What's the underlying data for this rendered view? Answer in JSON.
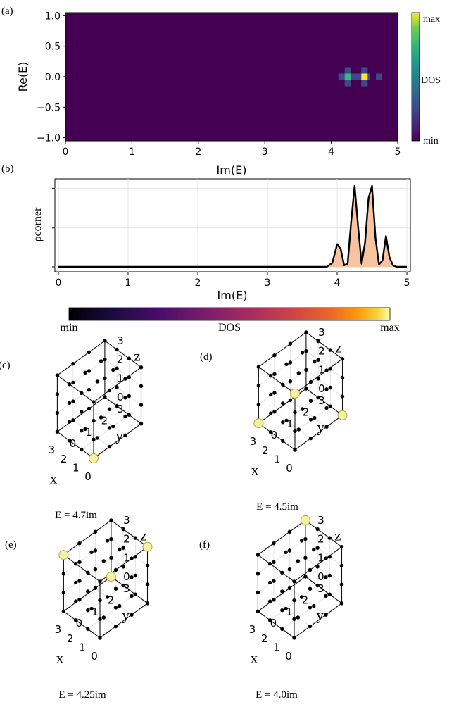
{
  "chart_data": [
    {
      "panel_label": "(a)",
      "type": "heatmap",
      "xlabel": "Im(E)",
      "ylabel": "Re(E)",
      "xlim": [
        0,
        5.0
      ],
      "ylim": [
        -1.05,
        1.05
      ],
      "xticks": [
        "0",
        "1",
        "2",
        "3",
        "4",
        "5"
      ],
      "yticks": [
        "1.0",
        "0.5",
        "0.0",
        "−0.5",
        "−1.0"
      ],
      "colorbar": {
        "label": "DOS",
        "max_label": "max",
        "min_label": "min"
      },
      "hotspots": [
        {
          "x": 3.98,
          "y": 0.0,
          "intensity": 0.22
        },
        {
          "x": 4.25,
          "y": 0.0,
          "intensity": 0.85
        },
        {
          "x": 4.5,
          "y": 0.0,
          "intensity": 1.0
        },
        {
          "x": 4.72,
          "y": 0.0,
          "intensity": 0.3
        }
      ]
    },
    {
      "panel_label": "(b)",
      "type": "area",
      "xlabel": "Im(E)",
      "ylabel": "ρcorner",
      "xlim": [
        -0.05,
        5.05
      ],
      "xticks": [
        "0",
        "1",
        "2",
        "3",
        "4",
        "5"
      ],
      "grid": true,
      "series": [
        {
          "x": [
            0,
            0.5,
            1.0,
            1.5,
            2.0,
            2.5,
            3.0,
            3.5,
            3.85,
            3.93,
            4.0,
            4.05,
            4.1,
            4.15,
            4.2,
            4.25,
            4.3,
            4.35,
            4.4,
            4.45,
            4.5,
            4.55,
            4.6,
            4.65,
            4.7,
            4.75,
            4.8,
            4.85,
            4.9,
            5.0
          ],
          "y": [
            0,
            0,
            0,
            0,
            0,
            0,
            0,
            0,
            0.0,
            0.05,
            0.28,
            0.22,
            0.02,
            0.04,
            0.55,
            1.0,
            0.5,
            0.04,
            0.3,
            0.85,
            1.0,
            0.35,
            0.03,
            0.08,
            0.38,
            0.12,
            0.02,
            0,
            0,
            0
          ]
        }
      ]
    },
    {
      "type": "colorbar",
      "label": "DOS",
      "min_label": "min",
      "max_label": "max"
    },
    {
      "panel_label": "(c)",
      "type": "scatter",
      "caption": "E = 4.7im",
      "xlabel": "x",
      "ylabel": "y",
      "zlabel": "z",
      "ticks": [
        "0",
        "1",
        "2",
        "3"
      ],
      "grid_points_per_axis": 4,
      "highlighted_sites": [
        {
          "x": 0,
          "y": 0,
          "z": 0
        }
      ]
    },
    {
      "panel_label": "(d)",
      "type": "scatter",
      "caption": "E =  4.5im",
      "xlabel": "x",
      "ylabel": "y",
      "zlabel": "z",
      "ticks": [
        "0",
        "1",
        "2",
        "3"
      ],
      "grid_points_per_axis": 4,
      "highlighted_sites": [
        {
          "x": 0,
          "y": 0,
          "z": 3
        },
        {
          "x": 3,
          "y": 0,
          "z": 0
        },
        {
          "x": 0,
          "y": 3,
          "z": 0
        }
      ]
    },
    {
      "panel_label": "(e)",
      "type": "scatter",
      "caption": "E = 4.25im",
      "xlabel": "x",
      "ylabel": "y",
      "zlabel": "z",
      "ticks": [
        "0",
        "1",
        "2",
        "3"
      ],
      "grid_points_per_axis": 4,
      "highlighted_sites": [
        {
          "x": 0,
          "y": 3,
          "z": 3
        },
        {
          "x": 3,
          "y": 0,
          "z": 3
        },
        {
          "x": 3,
          "y": 3,
          "z": 0
        }
      ]
    },
    {
      "panel_label": "(f)",
      "type": "scatter",
      "caption": "E = 4.0im",
      "xlabel": "x",
      "ylabel": "y",
      "zlabel": "z",
      "ticks": [
        "0",
        "1",
        "2",
        "3"
      ],
      "grid_points_per_axis": 4,
      "highlighted_sites": [
        {
          "x": 3,
          "y": 3,
          "z": 3
        }
      ]
    }
  ],
  "colors": {
    "viridis_bg": "#440154",
    "area_fill": "#f8c3a0",
    "line": "#000000",
    "highlight_fill": "#f6f2a5",
    "highlight_stroke": "#b5a834",
    "grid": "#e6e6e6"
  }
}
